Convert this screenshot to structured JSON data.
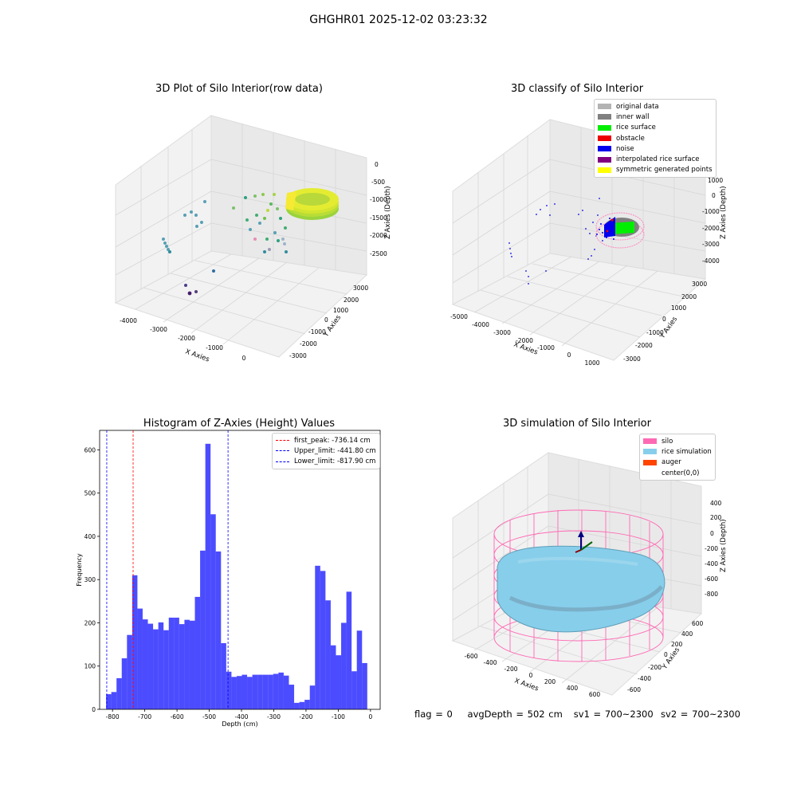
{
  "suptitle": "GHGHR01 2025-12-02 03:23:32",
  "footer": {
    "flag": "flag = 0",
    "avg_depth": "avgDepth = 502 cm",
    "sv1": "sv1 = 700~2300",
    "sv2": "sv2 = 700~2300"
  },
  "panels": {
    "raw": {
      "title": "3D Plot of Silo Interior(row data)",
      "xlabel": "X Axies",
      "ylabel": "Y Axies",
      "zlabel": "Z Axies (Depth)",
      "xticks": [
        "-4000",
        "-3000",
        "-2000",
        "-1000",
        "0"
      ],
      "yticks": [
        "3000",
        "2000",
        "1000",
        "0",
        "-1000",
        "-2000",
        "-3000"
      ],
      "zticks": [
        "0",
        "-500",
        "-1000",
        "-1500",
        "-2000",
        "-2500"
      ]
    },
    "classify": {
      "title": "3D classify of Silo Interior",
      "xlabel": "X Axies",
      "ylabel": "Y Axies",
      "zlabel": "Z Axies (Depth)",
      "xticks": [
        "-5000",
        "-4000",
        "-3000",
        "-2000",
        "-1000",
        "0",
        "1000"
      ],
      "yticks": [
        "3000",
        "2000",
        "1000",
        "0",
        "-1000",
        "-2000",
        "-3000"
      ],
      "zticks": [
        "1000",
        "0",
        "-1000",
        "-2000",
        "-3000",
        "-4000"
      ],
      "legend": [
        {
          "label": "original data",
          "color": "#b3b3b3"
        },
        {
          "label": "inner wall",
          "color": "#808080"
        },
        {
          "label": "rice surface",
          "color": "#00ee00"
        },
        {
          "label": "obstacle",
          "color": "#ee0000"
        },
        {
          "label": "noise",
          "color": "#0000ee"
        },
        {
          "label": "interpolated rice surface",
          "color": "#800080"
        },
        {
          "label": "symmetric generated points",
          "color": "#ffff00"
        }
      ]
    },
    "simulation": {
      "title": "3D simulation of Silo Interior",
      "xlabel": "X Axies",
      "ylabel": "Y Axies",
      "zlabel": "Z Axies (Depth)",
      "xticks": [
        "-600",
        "-400",
        "-200",
        "0",
        "200",
        "400",
        "600"
      ],
      "yticks": [
        "600",
        "400",
        "200",
        "0",
        "-200",
        "-400",
        "-600"
      ],
      "zticks": [
        "400",
        "200",
        "0",
        "-200",
        "-400",
        "-600",
        "-800"
      ],
      "legend": [
        {
          "label": "silo",
          "color": "#ff69b4"
        },
        {
          "label": "rice simulation",
          "color": "#87ceeb"
        },
        {
          "label": "auger",
          "color": "#ff4500"
        },
        {
          "label": "center(0,0)",
          "color": "none"
        }
      ]
    }
  },
  "chart_data": {
    "type": "bar",
    "title": "Histogram of Z-Axies (Height) Values",
    "xlabel": "Depth (cm)",
    "ylabel": "Frequency",
    "xlim": [
      -840,
      30
    ],
    "ylim": [
      0,
      645
    ],
    "bin_start": -820,
    "bin_width": 16.2,
    "values": [
      35,
      40,
      72,
      118,
      172,
      310,
      233,
      208,
      198,
      185,
      201,
      183,
      212,
      212,
      197,
      207,
      205,
      260,
      367,
      614,
      451,
      365,
      153,
      87,
      75,
      77,
      80,
      75,
      80,
      80,
      80,
      80,
      82,
      85,
      78,
      57,
      15,
      17,
      22,
      55,
      332,
      320,
      252,
      148,
      125,
      200,
      272,
      88,
      182,
      107
    ],
    "color": "#0000ff",
    "bar_alpha": 0.7,
    "xticks": [
      -800,
      -700,
      -600,
      -500,
      -400,
      -300,
      -200,
      -100,
      0
    ],
    "yticks": [
      0,
      100,
      200,
      300,
      400,
      500,
      600
    ],
    "vlines": [
      {
        "label": "first_peak: -736.14 cm",
        "x": -736.14,
        "color": "#ff0000"
      },
      {
        "label": "Upper_limit: -441.80 cm",
        "x": -441.8,
        "color": "#0000ff"
      },
      {
        "label": "Lower_limit: -817.90 cm",
        "x": -817.9,
        "color": "#0000ff"
      }
    ]
  }
}
